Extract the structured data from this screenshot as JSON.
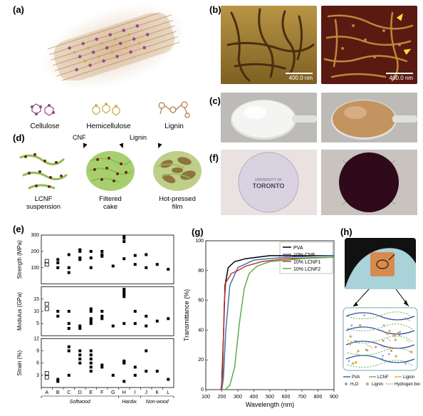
{
  "labels": {
    "a": "(a)",
    "b": "(b)",
    "c": "(c)",
    "d": "(d)",
    "e": "(e)",
    "f": "(f)",
    "g": "(g)",
    "h": "(h)"
  },
  "panel_a": {
    "molecules": [
      "Cellulose",
      "Hemicellulose",
      "Lignin"
    ],
    "colors": {
      "cellulose": "#9b4a8c",
      "hemicellulose": "#c7a84a",
      "lignin": "#b47a3c"
    }
  },
  "panel_b": {
    "scale_text": "400.0 nm",
    "bg_left": "#9b7a2f",
    "bg_right": "#5a1a12",
    "fiber_left": "#4a2e10",
    "fiber_right": "#c9953f",
    "arrow_color": "#ffe033"
  },
  "panel_c": {
    "bg": "#bdbbb8",
    "gel_white": "#f4f4f2",
    "gel_brown": "#c49460"
  },
  "panel_d": {
    "cnf_label": "CNF",
    "lignin_label": "Lignin",
    "items": [
      "LCNF\nsuspension",
      "Filtered\ncake",
      "Hot-pressed\nfilm"
    ],
    "cnf_color": "#8fbf4f",
    "lignin_dot": "#6b2a14",
    "lignin_blob": "#8a6a35"
  },
  "panel_e": {
    "type": "stacked-scatter",
    "subplots": [
      {
        "ylabel": "Strength (MPa)",
        "ylim": [
          0,
          300
        ],
        "yticks": [
          100,
          200,
          300
        ]
      },
      {
        "ylabel": "Modulus (GPa)",
        "ylim": [
          0,
          20
        ],
        "yticks": [
          5,
          10,
          15
        ]
      },
      {
        "ylabel": "Strain (%)",
        "ylim": [
          0,
          12
        ],
        "yticks": [
          3,
          6,
          9,
          12
        ]
      }
    ],
    "xticks": [
      "A",
      "B",
      "C",
      "D",
      "E",
      "F",
      "G",
      "H",
      "I",
      "J",
      "K",
      "L"
    ],
    "group_labels": [
      "Softwood",
      "Hardw.",
      "Non-wood"
    ],
    "group_bounds": [
      7,
      9,
      12
    ],
    "tick_fontsize": 7,
    "label_fontsize": 8,
    "marker_color": "#000000",
    "open_marker": "#000000",
    "background": "#ffffff",
    "data": {
      "strength": [
        [
          120,
          140
        ],
        [
          100,
          130,
          150
        ],
        [
          70,
          100,
          180
        ],
        [
          150,
          160,
          200,
          210
        ],
        [
          100,
          160,
          200
        ],
        [
          170,
          180,
          200
        ],
        [
          110
        ],
        [
          155,
          260,
          280,
          290
        ],
        [
          120,
          175
        ],
        [
          180,
          100
        ],
        [
          120
        ],
        [
          90
        ]
      ],
      "modulus": [
        [
          11,
          13
        ],
        [
          8,
          10
        ],
        [
          3,
          5,
          10
        ],
        [
          3,
          4
        ],
        [
          5,
          6,
          7,
          10,
          11
        ],
        [
          7,
          8,
          10
        ],
        [
          4
        ],
        [
          5,
          16,
          17,
          18,
          19
        ],
        [
          5,
          10
        ],
        [
          8,
          4
        ],
        [
          6
        ],
        [
          7
        ]
      ],
      "strain": [
        [
          2.5,
          3.5
        ],
        [
          1.5,
          2.0
        ],
        [
          3,
          9,
          10
        ],
        [
          6,
          7,
          8,
          9
        ],
        [
          4,
          5,
          6,
          7,
          8,
          9
        ],
        [
          5,
          5.5
        ],
        [
          3
        ],
        [
          1.5,
          6,
          6.2,
          6.5
        ],
        [
          3,
          5
        ],
        [
          9,
          4
        ],
        [
          4
        ],
        [
          2
        ]
      ]
    }
  },
  "panel_f": {
    "bg_left": "#e9e2e0",
    "bg_right": "#c9c3c0",
    "film_clear": "#d5d0e0",
    "film_dark": "#2f0a1a",
    "logo_text": "TORONTO",
    "logo_sub": "UNIVERSITY OF"
  },
  "panel_g": {
    "type": "line",
    "xlabel": "Wavelength (nm)",
    "ylabel": "Transmittance (%)",
    "xlim": [
      100,
      900
    ],
    "ylim": [
      0,
      100
    ],
    "xticks": [
      100,
      200,
      300,
      400,
      500,
      600,
      700,
      800,
      900
    ],
    "yticks": [
      0,
      20,
      40,
      60,
      80,
      100
    ],
    "tick_fontsize": 7,
    "label_fontsize": 9,
    "grid_color": "#e0e0e0",
    "background": "#ffffff",
    "legend": [
      {
        "name": "PVA",
        "color": "#000000"
      },
      {
        "name": "10% CNF",
        "color": "#4a72b0"
      },
      {
        "name": "10% LCNF1",
        "color": "#c43a2e"
      },
      {
        "name": "10% LCNF2",
        "color": "#5aae4b"
      }
    ],
    "series": {
      "PVA": [
        [
          195,
          0
        ],
        [
          200,
          5
        ],
        [
          210,
          35
        ],
        [
          220,
          70
        ],
        [
          240,
          82
        ],
        [
          280,
          86
        ],
        [
          350,
          88
        ],
        [
          500,
          90
        ],
        [
          700,
          90
        ],
        [
          900,
          90
        ]
      ],
      "10% CNF": [
        [
          200,
          0
        ],
        [
          210,
          8
        ],
        [
          225,
          40
        ],
        [
          250,
          70
        ],
        [
          300,
          82
        ],
        [
          400,
          87
        ],
        [
          600,
          89
        ],
        [
          900,
          90
        ]
      ],
      "10% LCNF1": [
        [
          195,
          0
        ],
        [
          205,
          10
        ],
        [
          215,
          58
        ],
        [
          225,
          72
        ],
        [
          260,
          78
        ],
        [
          300,
          80
        ],
        [
          350,
          83
        ],
        [
          450,
          86
        ],
        [
          600,
          88
        ],
        [
          900,
          89
        ]
      ],
      "10% LCNF2": [
        [
          220,
          0
        ],
        [
          250,
          3
        ],
        [
          280,
          15
        ],
        [
          310,
          45
        ],
        [
          340,
          68
        ],
        [
          370,
          78
        ],
        [
          420,
          83
        ],
        [
          500,
          86
        ],
        [
          700,
          88
        ],
        [
          900,
          89
        ]
      ]
    }
  },
  "panel_h": {
    "photo_bg": "#a9d3d8",
    "glove": "#a9d3d8",
    "sample": "#d78a4f",
    "legend": [
      {
        "name": "PVA",
        "color": "#2f4f9f"
      },
      {
        "name": "LCNF",
        "color": "#5aae4b"
      },
      {
        "name": "Lignin",
        "color": "#d7a24a"
      },
      {
        "name": "H₂O",
        "color": "#7fa7d9"
      },
      {
        "name": "Hydrogen bond",
        "color": "#c43a2e"
      }
    ],
    "legend_fontsize": 6
  }
}
